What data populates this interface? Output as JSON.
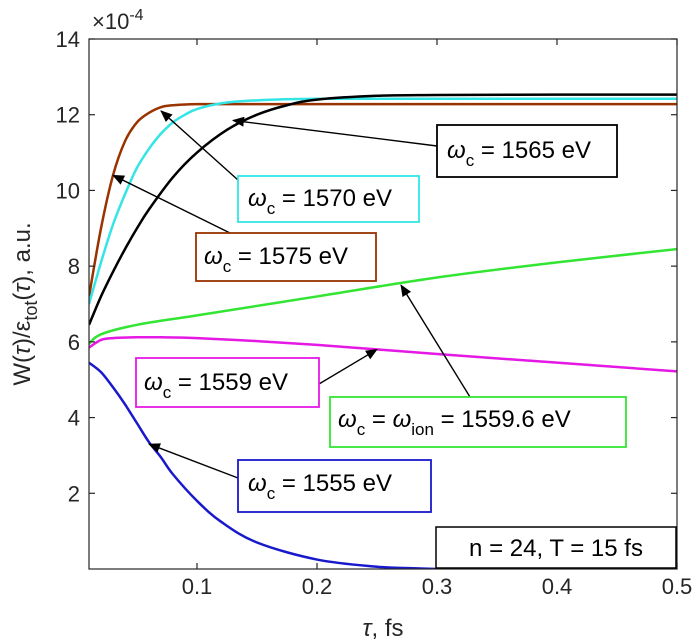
{
  "chart_data": {
    "type": "line",
    "xlabel_var": "τ",
    "xlabel_rest": ", fs",
    "ylabel_pre": "W(",
    "ylabel_tau1": "τ",
    "ylabel_mid": ")/ε",
    "ylabel_sub": "tot",
    "ylabel_post": "(",
    "ylabel_tau2": "τ",
    "ylabel_end": "), a.u.",
    "y_multiplier": "×10",
    "y_multiplier_exp": "-4",
    "xlim": [
      0.01,
      0.5
    ],
    "ylim": [
      0,
      14
    ],
    "xticks": [
      "0.1",
      "0.2",
      "0.3",
      "0.4",
      "0.5"
    ],
    "xtick_values": [
      0.1,
      0.2,
      0.3,
      0.4,
      0.5
    ],
    "yticks": [
      "2",
      "4",
      "6",
      "8",
      "10",
      "12",
      "14"
    ],
    "ytick_values": [
      2,
      4,
      6,
      8,
      10,
      12,
      14
    ],
    "grid": false,
    "series": [
      {
        "name": "ωc = 1575 eV",
        "color": "#993300",
        "x": [
          0.01,
          0.02,
          0.03,
          0.04,
          0.05,
          0.06,
          0.07,
          0.08,
          0.1,
          0.15,
          0.2,
          0.3,
          0.4,
          0.5
        ],
        "y": [
          7.2,
          9.0,
          10.4,
          11.3,
          11.8,
          12.05,
          12.2,
          12.25,
          12.28,
          12.28,
          12.28,
          12.28,
          12.28,
          12.28
        ]
      },
      {
        "name": "ωc = 1570 eV",
        "color": "#33e5e5",
        "x": [
          0.01,
          0.02,
          0.03,
          0.04,
          0.05,
          0.06,
          0.07,
          0.08,
          0.09,
          0.1,
          0.12,
          0.15,
          0.2,
          0.3,
          0.4,
          0.5
        ],
        "y": [
          7.0,
          8.1,
          9.1,
          9.9,
          10.6,
          11.1,
          11.5,
          11.8,
          12.0,
          12.15,
          12.3,
          12.38,
          12.42,
          12.42,
          12.42,
          12.42
        ]
      },
      {
        "name": "ωc = 1565 eV",
        "color": "#000000",
        "x": [
          0.01,
          0.02,
          0.03,
          0.04,
          0.05,
          0.06,
          0.08,
          0.1,
          0.125,
          0.15,
          0.175,
          0.2,
          0.25,
          0.3,
          0.4,
          0.5
        ],
        "y": [
          6.45,
          7.2,
          7.85,
          8.45,
          9.0,
          9.5,
          10.35,
          11.0,
          11.6,
          12.0,
          12.25,
          12.4,
          12.5,
          12.52,
          12.53,
          12.53
        ]
      },
      {
        "name": "ωc = ωion = 1559.6 eV",
        "color": "#33e533",
        "x": [
          0.01,
          0.02,
          0.05,
          0.1,
          0.2,
          0.3,
          0.4,
          0.5
        ],
        "y": [
          5.95,
          6.2,
          6.45,
          6.7,
          7.2,
          7.7,
          8.1,
          8.45
        ]
      },
      {
        "name": "ωc = 1559 eV",
        "color": "#e519e5",
        "x": [
          0.01,
          0.02,
          0.03,
          0.05,
          0.07,
          0.1,
          0.15,
          0.2,
          0.25,
          0.3,
          0.4,
          0.5
        ],
        "y": [
          5.85,
          6.05,
          6.1,
          6.12,
          6.12,
          6.1,
          6.02,
          5.92,
          5.8,
          5.68,
          5.45,
          5.22
        ]
      },
      {
        "name": "ωc = 1555 eV",
        "color": "#1919cc",
        "x": [
          0.01,
          0.02,
          0.03,
          0.04,
          0.05,
          0.06,
          0.07,
          0.08,
          0.1,
          0.12,
          0.15,
          0.2,
          0.25,
          0.28,
          0.3
        ],
        "y": [
          5.45,
          5.2,
          4.8,
          4.35,
          3.85,
          3.35,
          2.95,
          2.5,
          1.8,
          1.25,
          0.7,
          0.25,
          0.06,
          0.02,
          0.0
        ]
      }
    ],
    "annotations": [
      {
        "sym": "ω",
        "sub": "c",
        "rest": " = 1565 eV",
        "color": "#000000",
        "tip_x": 0.13,
        "tip_y": 11.85
      },
      {
        "sym": "ω",
        "sub": "c",
        "rest": " = 1570 eV",
        "color": "#33e5e5",
        "tip_x": 0.07,
        "tip_y": 12.1
      },
      {
        "sym": "ω",
        "sub": "c",
        "rest": " = 1575 eV",
        "color": "#993300",
        "tip_x": 0.03,
        "tip_y": 10.4
      },
      {
        "sym": "ω",
        "sub": "c",
        "rest": " = 1559 eV",
        "color": "#e519e5",
        "tip_x": 0.25,
        "tip_y": 5.8
      },
      {
        "sym": "ω",
        "sub": "c",
        "rest": " = ",
        "sym2": "ω",
        "sub2": "ion",
        "rest2": " = 1559.6 eV",
        "color": "#33e533",
        "tip_x": 0.27,
        "tip_y": 7.5
      },
      {
        "sym": "ω",
        "sub": "c",
        "rest": " = 1555 eV",
        "color": "#1919cc",
        "tip_x": 0.06,
        "tip_y": 3.3
      }
    ],
    "info_box": "n = 24, T = 15 fs"
  }
}
